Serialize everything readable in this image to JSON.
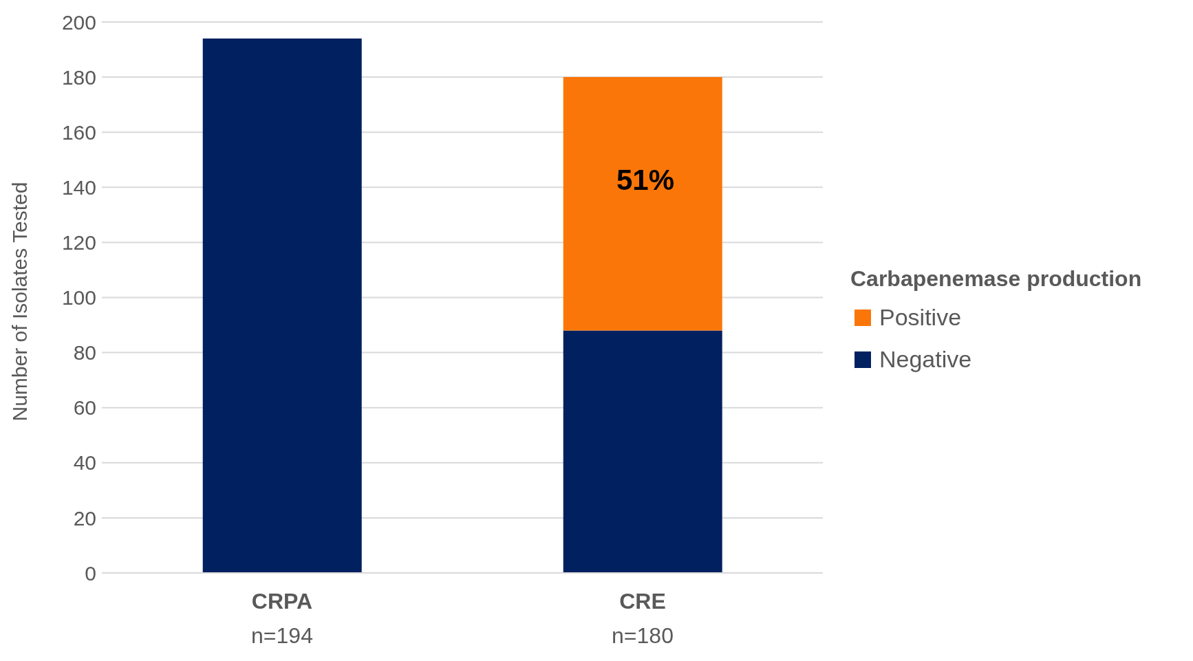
{
  "chart_data": {
    "type": "bar",
    "stacked": true,
    "ylabel": "Number of Isolates Tested",
    "legend_title": "Carbapenemase production",
    "categories": [
      "CRPA\nn=194",
      "CRE\nn=180"
    ],
    "series": [
      {
        "name": "Negative",
        "color": "#002060",
        "values": [
          194,
          88
        ]
      },
      {
        "name": "Positive",
        "color": "#fa7608",
        "values": [
          0,
          92
        ]
      }
    ],
    "annotations": [
      "51%"
    ],
    "ylim": [
      0,
      200
    ],
    "yticks": [
      0,
      20,
      40,
      60,
      80,
      100,
      120,
      140,
      160,
      180,
      200
    ],
    "grid": "y",
    "legend": "right"
  }
}
